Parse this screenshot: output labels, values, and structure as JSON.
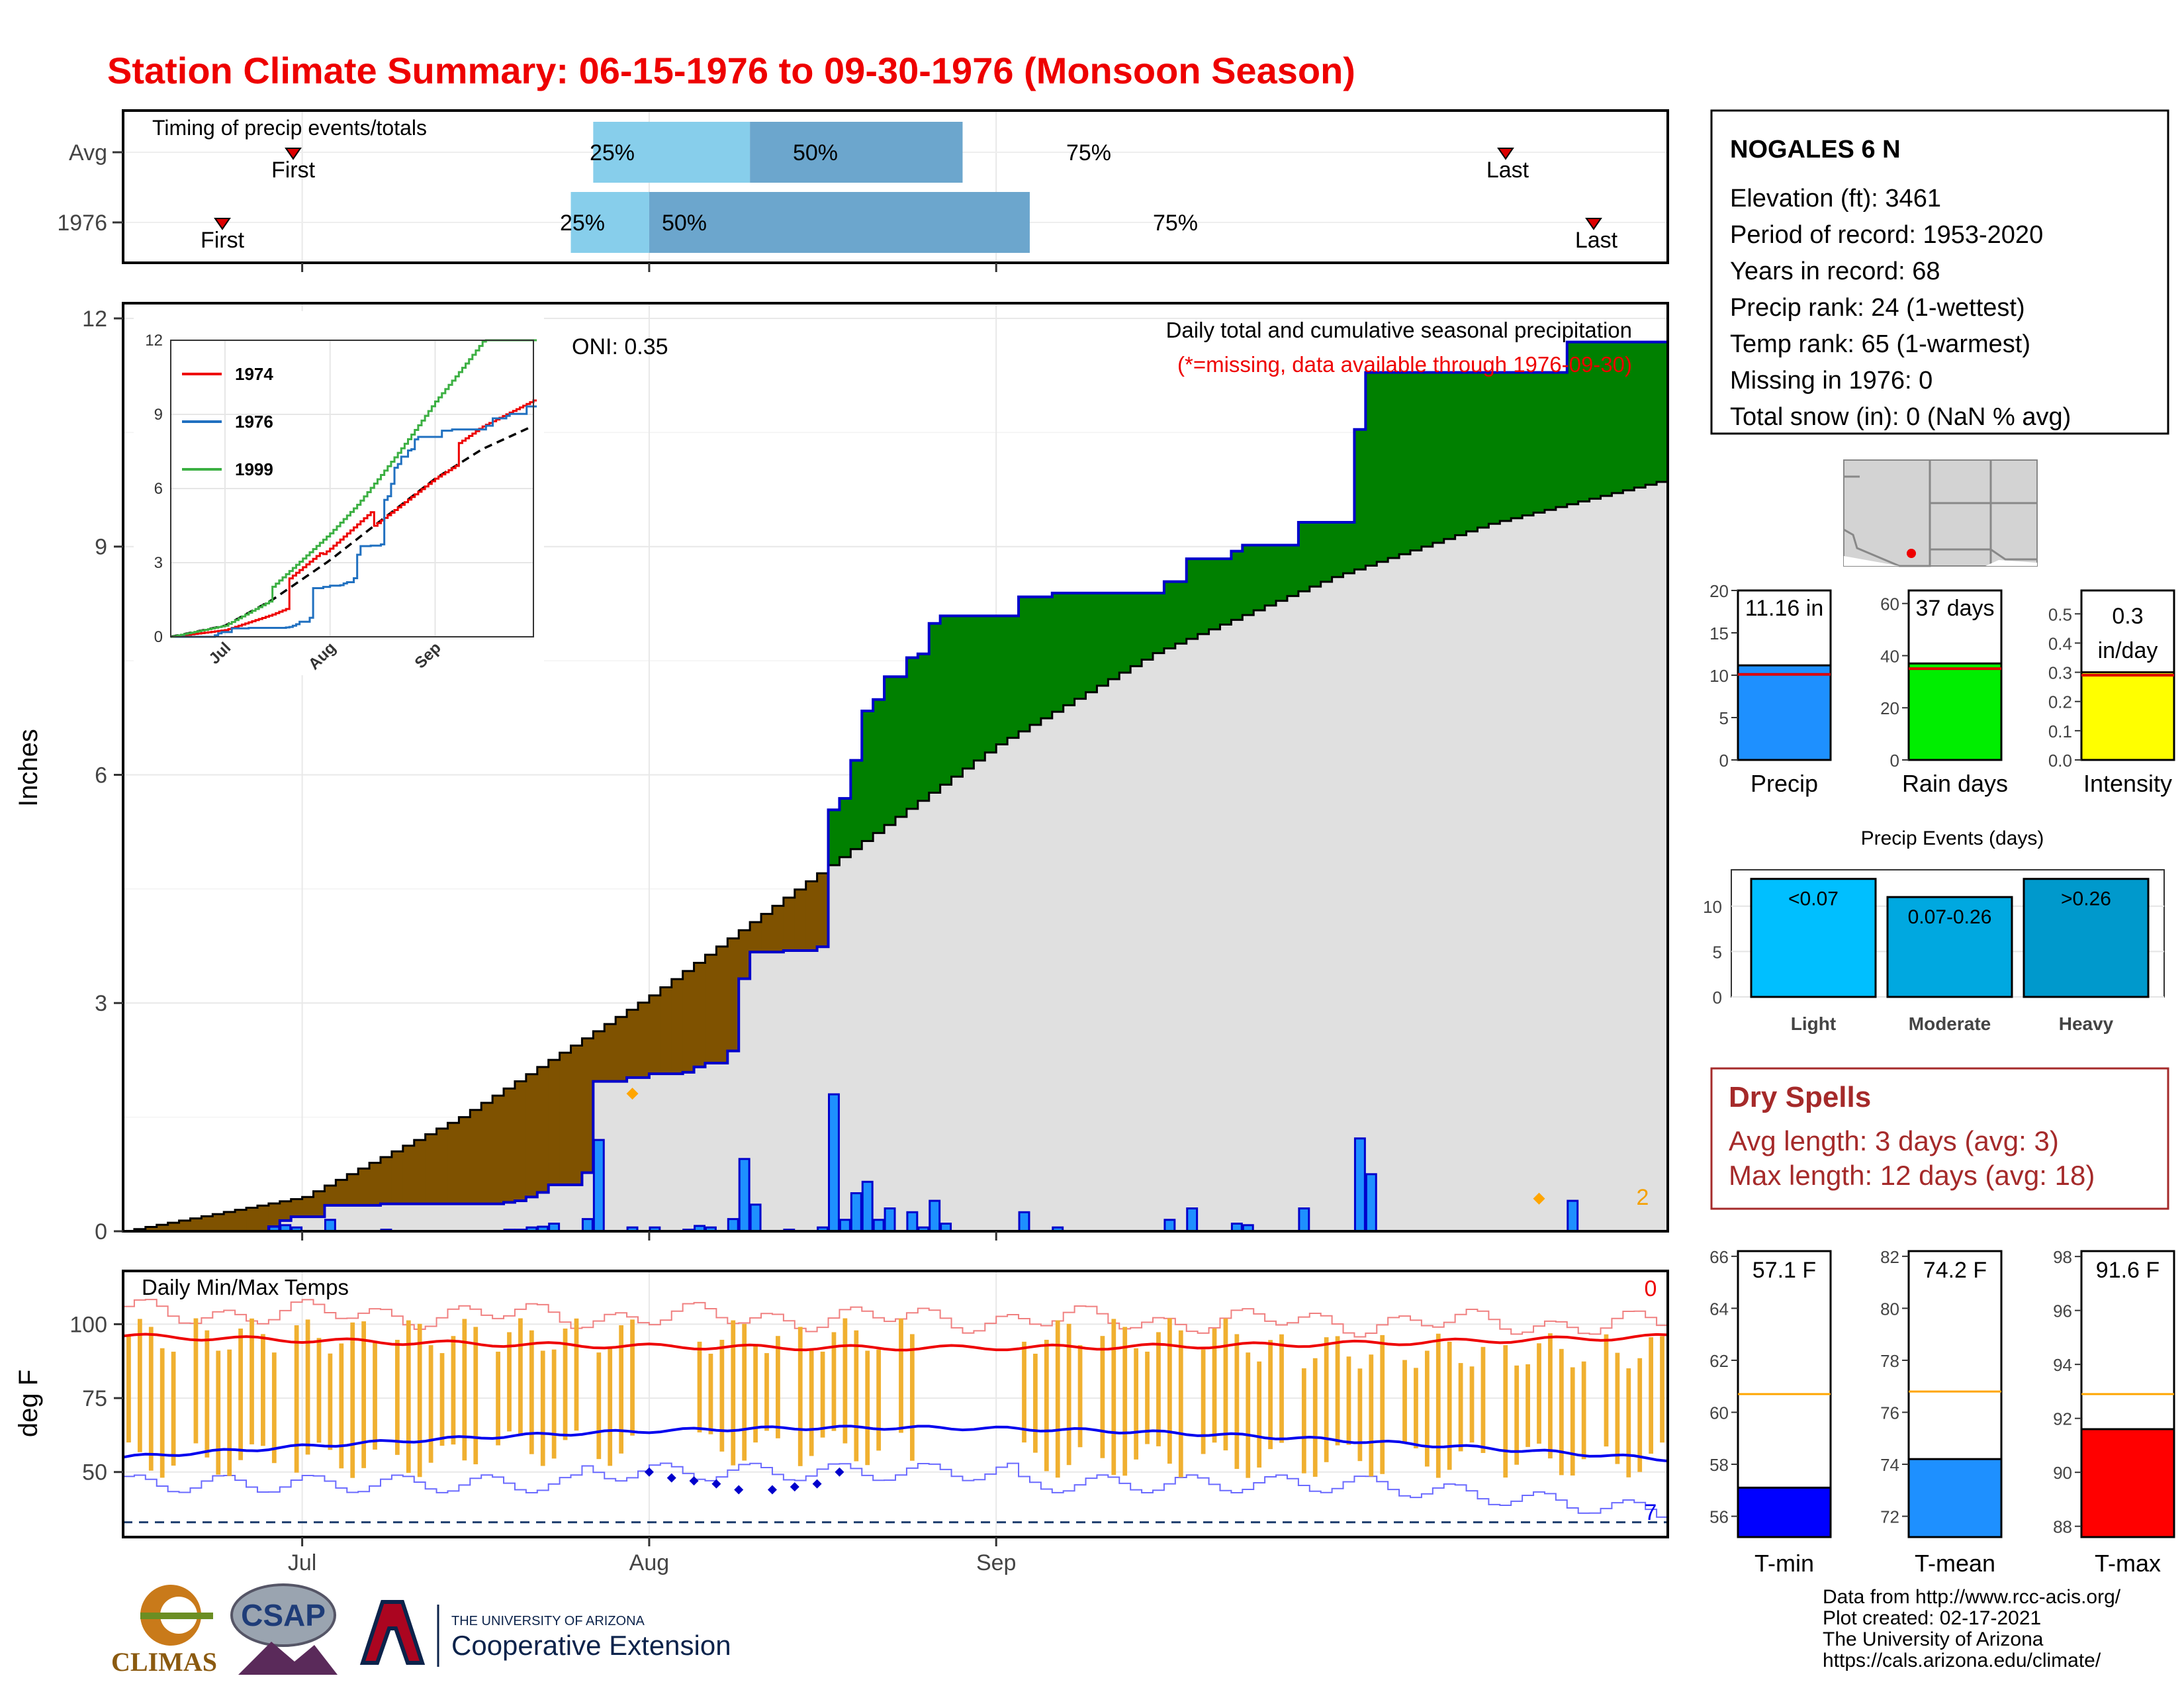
{
  "title": "Station Climate Summary: 06-15-1976 to 09-30-1976 (Monsoon Season)",
  "colors": {
    "title": "#ee0000",
    "green_fill": "#008000",
    "brown_fill": "#7f5200",
    "gray_fill": "#e0e0e0",
    "bar_blue": "#1e90ff",
    "outline_blue": "#0000cc",
    "temp_bar": "#f0b030",
    "tmax_line": "#ee0000",
    "tmin_line": "#0000ee",
    "q_light": "#87ceeb",
    "q_dark": "#6ca6cd",
    "dry_red": "#a52a2a"
  },
  "timing": {
    "label": "Timing of precip events/totals",
    "rows": [
      {
        "name": "Avg",
        "first_label": "First",
        "last_label": "Last",
        "p25_label": "25%",
        "p50_label": "50%",
        "p75_label": "75%"
      },
      {
        "name": "1976",
        "first_label": "First",
        "last_label": "Last",
        "p25_label": "25%",
        "p50_label": "50%",
        "p75_label": "75%"
      }
    ]
  },
  "precip_panel": {
    "ylabel": "Inches",
    "oni": "ONI: 0.35",
    "caption1": "Daily total and cumulative seasonal precipitation",
    "caption2": "(*=missing, data available through 1976-09-30)",
    "count_label": "2",
    "y_ticks": [
      "0",
      "3",
      "6",
      "9",
      "12"
    ]
  },
  "inset": {
    "y_ticks": [
      "0",
      "3",
      "6",
      "9",
      "12"
    ],
    "x_ticks": [
      "Jul",
      "Aug",
      "Sep"
    ],
    "legend": [
      {
        "label": "1974",
        "color": "#ee0000"
      },
      {
        "label": "1976",
        "color": "#2070c0"
      },
      {
        "label": "1999",
        "color": "#3cb043"
      }
    ]
  },
  "temp_panel": {
    "title": "Daily Min/Max Temps",
    "ylabel": "deg F",
    "y_ticks": [
      "50",
      "75",
      "100"
    ],
    "top_count": "0",
    "bottom_count": "7"
  },
  "x_axis": {
    "ticks": [
      "Jul",
      "Aug",
      "Sep"
    ]
  },
  "station": {
    "name": "NOGALES 6 N",
    "lines": [
      "Elevation (ft): 3461",
      "Period of record: 1953-2020",
      "Years in record: 68",
      "Precip rank: 24 (1-wettest)",
      "Temp rank: 65 (1-warmest)",
      "Missing in 1976: 0",
      "Total snow (in): 0 (NaN % avg)"
    ]
  },
  "summary_bars": [
    {
      "label": "Precip",
      "value_label": "11.16 in",
      "value": 11.16,
      "avg": 10.1,
      "ymax": 20,
      "ticks": [
        "0",
        "5",
        "10",
        "15",
        "20"
      ],
      "color": "#1e90ff"
    },
    {
      "label": "Rain days",
      "value_label": "37 days",
      "value": 37,
      "avg": 35,
      "ymax": 65,
      "ticks": [
        "0",
        "20",
        "40",
        "60"
      ],
      "color": "#00ee00"
    },
    {
      "label": "Intensity",
      "value_label": "0.3",
      "value_label2": "in/day",
      "value": 0.3,
      "avg": 0.29,
      "ymax": 0.58,
      "ticks": [
        "0.0",
        "0.1",
        "0.2",
        "0.3",
        "0.4",
        "0.5"
      ],
      "color": "#ffff00"
    }
  ],
  "events": {
    "title": "Precip Events (days)",
    "ticks": [
      "0",
      "5",
      "10"
    ],
    "bars": [
      {
        "label": "Light",
        "value_label": "<0.07",
        "value": 13,
        "color": "#00bfff"
      },
      {
        "label": "Moderate",
        "value_label": "0.07-0.26",
        "value": 11,
        "color": "#00a8e0"
      },
      {
        "label": "Heavy",
        "value_label": ">0.26",
        "value": 13,
        "color": "#0099cc"
      }
    ]
  },
  "dry_spells": {
    "title": "Dry Spells",
    "line1": "Avg length: 3 days (avg: 3)",
    "line2": "Max length: 12 days (avg: 18)"
  },
  "temp_bars": [
    {
      "label": "T-min",
      "value_label": "57.1 F",
      "value": 57.1,
      "avg": 60.7,
      "ymin": 55.2,
      "ymax": 66.2,
      "ticks": [
        "56",
        "58",
        "60",
        "62",
        "64",
        "66"
      ],
      "color": "#0000ff"
    },
    {
      "label": "T-mean",
      "value_label": "74.2 F",
      "value": 74.2,
      "avg": 76.8,
      "ymin": 71.2,
      "ymax": 82.2,
      "ticks": [
        "72",
        "74",
        "76",
        "78",
        "80",
        "82"
      ],
      "color": "#1e90ff"
    },
    {
      "label": "T-max",
      "value_label": "91.6 F",
      "value": 91.6,
      "avg": 92.9,
      "ymin": 87.6,
      "ymax": 98.2,
      "ticks": [
        "88",
        "90",
        "92",
        "94",
        "96",
        "98"
      ],
      "color": "#ff0000"
    }
  ],
  "credits": [
    "Data from http://www.rcc-acis.org/",
    "Plot created: 02-17-2021",
    "The University of Arizona",
    "https://cals.arizona.edu/climate/"
  ],
  "logos": {
    "climas": "CLIMAS",
    "csap": "CSAP",
    "ua_top": "THE UNIVERSITY OF ARIZONA",
    "ua_bottom": "Cooperative Extension"
  },
  "chart_data": {
    "type": "area",
    "x_start": "1976-06-15",
    "x_end": "1976-09-30",
    "ylim": [
      0,
      12.2
    ],
    "daily_precip_1976": [
      {
        "date": "1976-06-28",
        "value": 0.06
      },
      {
        "date": "1976-06-29",
        "value": 0.08
      },
      {
        "date": "1976-06-30",
        "value": 0.05
      },
      {
        "date": "1976-07-03",
        "value": 0.15
      },
      {
        "date": "1976-07-08",
        "value": 0.02
      },
      {
        "date": "1976-07-19",
        "value": 0.02
      },
      {
        "date": "1976-07-20",
        "value": 0.02
      },
      {
        "date": "1976-07-21",
        "value": 0.05
      },
      {
        "date": "1976-07-22",
        "value": 0.06
      },
      {
        "date": "1976-07-23",
        "value": 0.1
      },
      {
        "date": "1976-07-26",
        "value": 0.16
      },
      {
        "date": "1976-07-27",
        "value": 1.2
      },
      {
        "date": "1976-07-30",
        "value": 0.05
      },
      {
        "date": "1976-08-01",
        "value": 0.05
      },
      {
        "date": "1976-08-04",
        "value": 0.02
      },
      {
        "date": "1976-08-05",
        "value": 0.07
      },
      {
        "date": "1976-08-06",
        "value": 0.05
      },
      {
        "date": "1976-08-08",
        "value": 0.16
      },
      {
        "date": "1976-08-09",
        "value": 0.95
      },
      {
        "date": "1976-08-10",
        "value": 0.35
      },
      {
        "date": "1976-08-13",
        "value": 0.02
      },
      {
        "date": "1976-08-16",
        "value": 0.05
      },
      {
        "date": "1976-08-17",
        "value": 1.8
      },
      {
        "date": "1976-08-18",
        "value": 0.15
      },
      {
        "date": "1976-08-19",
        "value": 0.5
      },
      {
        "date": "1976-08-20",
        "value": 0.65
      },
      {
        "date": "1976-08-21",
        "value": 0.15
      },
      {
        "date": "1976-08-22",
        "value": 0.3
      },
      {
        "date": "1976-08-24",
        "value": 0.25
      },
      {
        "date": "1976-08-25",
        "value": 0.05
      },
      {
        "date": "1976-08-26",
        "value": 0.4
      },
      {
        "date": "1976-08-27",
        "value": 0.1
      },
      {
        "date": "1976-09-03",
        "value": 0.25
      },
      {
        "date": "1976-09-06",
        "value": 0.05
      },
      {
        "date": "1976-09-16",
        "value": 0.15
      },
      {
        "date": "1976-09-18",
        "value": 0.3
      },
      {
        "date": "1976-09-22",
        "value": 0.1
      },
      {
        "date": "1976-09-23",
        "value": 0.08
      },
      {
        "date": "1976-09-28",
        "value": 0.3
      },
      {
        "date": "1976-10-03",
        "value": 1.22
      },
      {
        "date": "1976-10-04",
        "value": 0.75
      },
      {
        "date": "1976-10-22",
        "value": 0.4
      }
    ],
    "avg_cumulative": [
      {
        "date": "1976-06-15",
        "value": 0
      },
      {
        "date": "1976-07-01",
        "value": 0.45
      },
      {
        "date": "1976-07-15",
        "value": 1.5
      },
      {
        "date": "1976-08-01",
        "value": 3.1
      },
      {
        "date": "1976-08-15",
        "value": 4.6
      },
      {
        "date": "1976-09-01",
        "value": 6.4
      },
      {
        "date": "1976-09-15",
        "value": 7.6
      },
      {
        "date": "1976-10-01",
        "value": 8.6
      },
      {
        "date": "1976-10-15",
        "value": 9.3
      },
      {
        "date": "1976-10-30",
        "value": 9.85
      }
    ],
    "timing_percentiles": {
      "Avg": {
        "first": "1976-06-24",
        "p25": "1976-07-27",
        "p50": "1976-08-10",
        "p75": "1976-08-29",
        "last": "1976-10-26"
      },
      "1976": {
        "first": "1976-06-19",
        "p25": "1976-07-25",
        "p50": "1976-08-01",
        "p75": "1976-09-04",
        "last": "1976-11-01"
      }
    },
    "temp_summary": {
      "tmax_avg_line": 93,
      "tmin_avg_line": 60,
      "units": "deg F"
    }
  }
}
